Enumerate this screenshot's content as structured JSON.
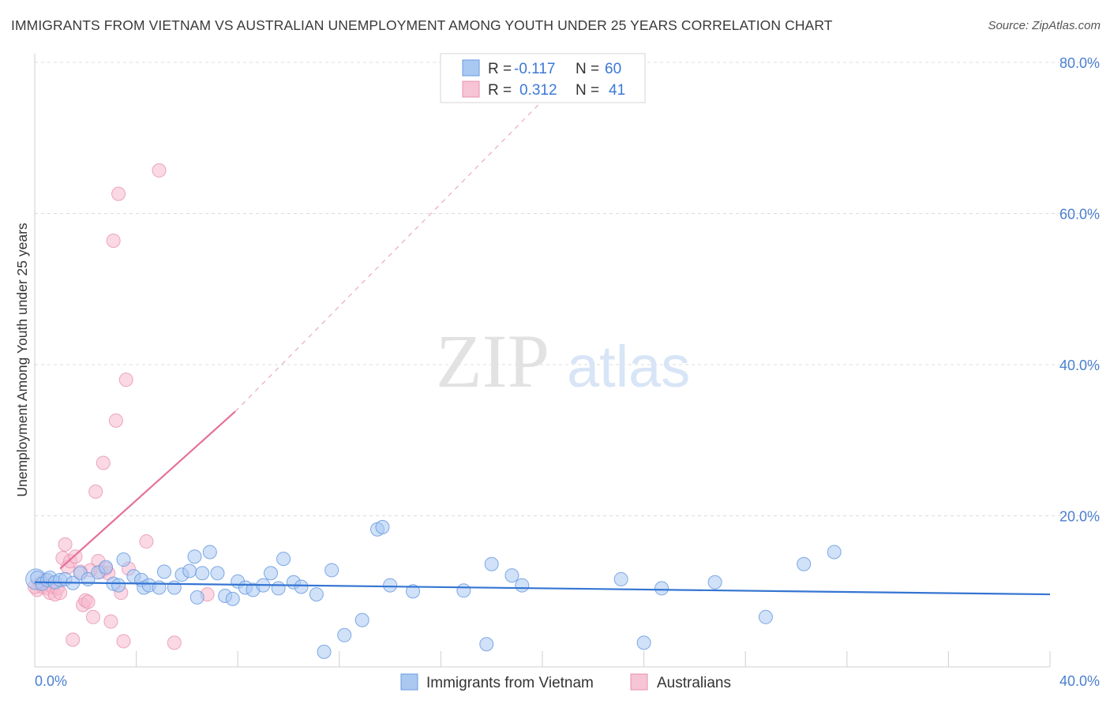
{
  "header": {
    "title": "IMMIGRANTS FROM VIETNAM VS AUSTRALIAN UNEMPLOYMENT AMONG YOUTH UNDER 25 YEARS CORRELATION CHART",
    "source": "Source: ZipAtlas.com"
  },
  "watermark": {
    "zip": "ZIP",
    "atlas": "atlas"
  },
  "legend_box": {
    "rows": [
      {
        "r_label": "R =",
        "r_value": "-0.117",
        "n_label": "N =",
        "n_value": "60"
      },
      {
        "r_label": "R =",
        "r_value": "0.312",
        "n_label": "N =",
        "n_value": "41"
      }
    ]
  },
  "colors": {
    "blue_fill": "#a9c8f2",
    "blue_stroke": "#6a9be0",
    "blue_line": "#3575d2",
    "pink_fill": "#f6b9cd",
    "pink_stroke": "#e891b0",
    "pink_line": "#e5709a",
    "grid": "#dcdcdc",
    "tick_text": "#4a7fd0"
  },
  "chart_data": {
    "type": "scatter",
    "title": "IMMIGRANTS FROM VIETNAM VS AUSTRALIAN UNEMPLOYMENT AMONG YOUTH UNDER 25 YEARS CORRELATION CHART",
    "xlabel": "",
    "ylabel": "Unemployment Among Youth under 25 years",
    "xlim": [
      0,
      40
    ],
    "ylim": [
      0,
      80
    ],
    "x_tick_labels": [
      "0.0%",
      "40.0%"
    ],
    "y_ticks": [
      {
        "value": 20,
        "label": "20.0%"
      },
      {
        "value": 40,
        "label": "40.0%"
      },
      {
        "value": 60,
        "label": "60.0%"
      },
      {
        "value": 80,
        "label": "80.0%"
      }
    ],
    "legend": [
      "Immigrants from Vietnam",
      "Australians"
    ],
    "series": [
      {
        "name": "Immigrants from Vietnam",
        "color": "blue",
        "r": -0.117,
        "n": 60,
        "trend": {
          "x0": 0,
          "y0": 11.2,
          "x1": 40,
          "y1": 9.6,
          "dashed_from": null
        },
        "points": [
          [
            0.1,
            11.8
          ],
          [
            0.3,
            11.0
          ],
          [
            0.5,
            11.5
          ],
          [
            0.6,
            11.8
          ],
          [
            0.8,
            11.2
          ],
          [
            1.0,
            11.5
          ],
          [
            1.2,
            11.6
          ],
          [
            1.5,
            11.1
          ],
          [
            1.8,
            12.4
          ],
          [
            2.1,
            11.6
          ],
          [
            2.5,
            12.5
          ],
          [
            2.8,
            13.2
          ],
          [
            3.1,
            11.0
          ],
          [
            3.3,
            10.8
          ],
          [
            3.5,
            14.2
          ],
          [
            3.9,
            12.0
          ],
          [
            4.2,
            11.5
          ],
          [
            4.3,
            10.5
          ],
          [
            4.5,
            10.8
          ],
          [
            4.9,
            10.5
          ],
          [
            5.1,
            12.6
          ],
          [
            5.5,
            10.5
          ],
          [
            5.8,
            12.2
          ],
          [
            6.1,
            12.7
          ],
          [
            6.3,
            14.6
          ],
          [
            6.4,
            9.2
          ],
          [
            6.6,
            12.4
          ],
          [
            6.9,
            15.2
          ],
          [
            7.2,
            12.4
          ],
          [
            7.5,
            9.4
          ],
          [
            7.8,
            9.0
          ],
          [
            8.0,
            11.3
          ],
          [
            8.3,
            10.5
          ],
          [
            8.6,
            10.2
          ],
          [
            9.0,
            10.8
          ],
          [
            9.3,
            12.4
          ],
          [
            9.6,
            10.4
          ],
          [
            9.8,
            14.3
          ],
          [
            10.2,
            11.2
          ],
          [
            10.5,
            10.6
          ],
          [
            11.1,
            9.6
          ],
          [
            11.7,
            12.8
          ],
          [
            12.2,
            4.2
          ],
          [
            12.9,
            6.2
          ],
          [
            13.5,
            18.2
          ],
          [
            13.7,
            18.5
          ],
          [
            14.0,
            10.8
          ],
          [
            14.9,
            10.0
          ],
          [
            16.9,
            10.1
          ],
          [
            17.8,
            3.0
          ],
          [
            18.0,
            13.6
          ],
          [
            18.8,
            12.1
          ],
          [
            19.2,
            10.8
          ],
          [
            23.1,
            11.6
          ],
          [
            24.0,
            3.2
          ],
          [
            24.7,
            10.4
          ],
          [
            26.8,
            11.2
          ],
          [
            28.8,
            6.6
          ],
          [
            30.3,
            13.6
          ],
          [
            31.5,
            15.2
          ]
        ],
        "large_points": [
          [
            0.05,
            11.6
          ]
        ],
        "stray_points": [
          [
            11.4,
            2.0
          ]
        ]
      },
      {
        "name": "Australians",
        "color": "pink",
        "r": 0.312,
        "n": 41,
        "trend": {
          "x0": 1.0,
          "y0": 13.0,
          "x1": 7.9,
          "y1": 33.8,
          "dashed_to": [
            21.5,
            80.0
          ]
        },
        "points": [
          [
            0.1,
            10.2
          ],
          [
            0.2,
            11.0
          ],
          [
            0.3,
            10.6
          ],
          [
            0.4,
            11.5
          ],
          [
            0.5,
            10.4
          ],
          [
            0.6,
            9.8
          ],
          [
            0.7,
            10.6
          ],
          [
            0.8,
            9.6
          ],
          [
            0.9,
            10.4
          ],
          [
            1.0,
            9.8
          ],
          [
            1.1,
            14.4
          ],
          [
            1.2,
            16.2
          ],
          [
            1.3,
            13.2
          ],
          [
            1.4,
            14.0
          ],
          [
            1.5,
            3.6
          ],
          [
            1.6,
            14.6
          ],
          [
            1.8,
            12.6
          ],
          [
            1.9,
            8.2
          ],
          [
            2.0,
            8.8
          ],
          [
            2.1,
            8.6
          ],
          [
            2.2,
            12.8
          ],
          [
            2.3,
            6.6
          ],
          [
            2.4,
            23.2
          ],
          [
            2.5,
            14.0
          ],
          [
            2.6,
            12.6
          ],
          [
            2.7,
            27.0
          ],
          [
            2.8,
            13.0
          ],
          [
            2.9,
            12.4
          ],
          [
            3.0,
            6.0
          ],
          [
            3.1,
            56.4
          ],
          [
            3.2,
            32.6
          ],
          [
            3.3,
            62.6
          ],
          [
            3.4,
            9.8
          ],
          [
            3.5,
            3.4
          ],
          [
            3.6,
            38.0
          ],
          [
            3.7,
            13.0
          ],
          [
            4.4,
            16.6
          ],
          [
            4.9,
            65.7
          ],
          [
            5.5,
            3.2
          ],
          [
            6.8,
            9.6
          ],
          [
            0.0,
            10.6
          ]
        ]
      }
    ]
  },
  "bottom_legend": {
    "items": [
      "Immigrants from Vietnam",
      "Australians"
    ]
  }
}
